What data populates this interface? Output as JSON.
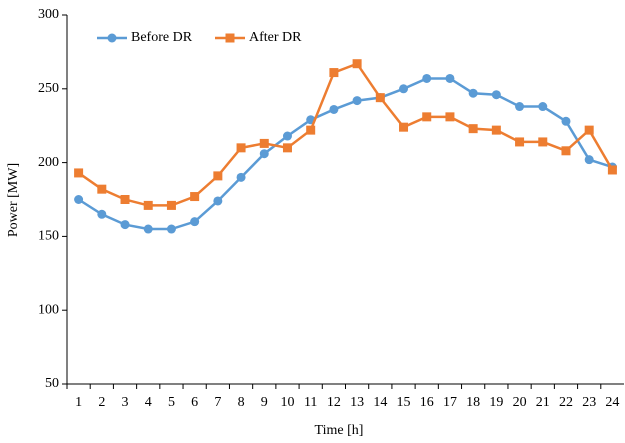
{
  "chart_data": {
    "type": "line",
    "x_label": "Time [h]",
    "y_label": "Power [MW]",
    "categories": [
      "1",
      "2",
      "3",
      "4",
      "5",
      "6",
      "7",
      "8",
      "9",
      "10",
      "11",
      "12",
      "13",
      "14",
      "15",
      "16",
      "17",
      "18",
      "19",
      "20",
      "21",
      "22",
      "23",
      "24"
    ],
    "series": [
      {
        "name": "Before DR",
        "color": "#5b9bd5",
        "marker": "circle",
        "values": [
          175,
          165,
          158,
          155,
          155,
          160,
          174,
          190,
          206,
          218,
          229,
          236,
          242,
          244,
          250,
          257,
          257,
          247,
          246,
          238,
          238,
          228,
          202,
          197
        ]
      },
      {
        "name": "After DR",
        "color": "#ed7d31",
        "marker": "square",
        "values": [
          193,
          182,
          175,
          171,
          171,
          177,
          191,
          210,
          213,
          210,
          222,
          261,
          267,
          244,
          224,
          231,
          231,
          223,
          222,
          214,
          214,
          208,
          222,
          195
        ]
      }
    ],
    "ylim": [
      50,
      300
    ],
    "yticks": [
      50,
      100,
      150,
      200,
      250,
      300
    ],
    "grid": false,
    "legend": "top-left"
  }
}
